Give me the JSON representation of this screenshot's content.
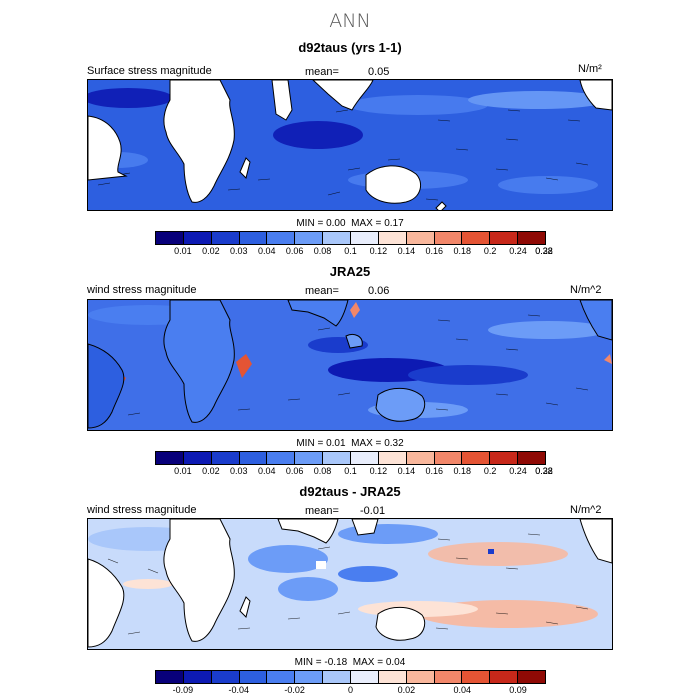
{
  "figure": {
    "title": "ANN"
  },
  "colorbar": {
    "colors": [
      "#08007a",
      "#0d1ab3",
      "#1a3ccc",
      "#2d5fe0",
      "#4a7ef0",
      "#6c9cf7",
      "#a9c7fa",
      "#e9eefc",
      "#fde3d6",
      "#f9b79c",
      "#f2876a",
      "#e45434",
      "#c7281a",
      "#8f0a05"
    ]
  },
  "panels": [
    {
      "id": "d92taus",
      "title": "d92taus (yrs 1-1)",
      "left_label": "Surface stress magnitude",
      "mean_label": "mean=",
      "mean_value": "0.05",
      "units": "N/m²",
      "min_label": "MIN =",
      "min_value": "0.00",
      "max_label": "MAX =",
      "max_value": "0.17",
      "ticks": [
        "0.01",
        "0.02",
        "0.03",
        "0.04",
        "0.06",
        "0.08",
        "0.1",
        "0.12",
        "0.14",
        "0.16",
        "0.18",
        "0.2",
        "0.24",
        "0.28",
        "0.32"
      ],
      "ocean_color": "#2d5fe0",
      "accent_color": "#4a7ef0"
    },
    {
      "id": "jra25",
      "title": "JRA25",
      "left_label": "wind stress magnitude",
      "mean_label": "mean=",
      "mean_value": "0.06",
      "units": "N/m^2",
      "min_label": "MIN =",
      "min_value": "0.01",
      "max_label": "MAX =",
      "max_value": "0.32",
      "ticks": [
        "0.01",
        "0.02",
        "0.03",
        "0.04",
        "0.06",
        "0.08",
        "0.1",
        "0.12",
        "0.14",
        "0.16",
        "0.18",
        "0.2",
        "0.24",
        "0.28",
        "0.32"
      ],
      "ocean_color": "#3f6fe8",
      "accent_color": "#6c9cf7"
    },
    {
      "id": "diff",
      "title": "d92taus - JRA25",
      "left_label": "wind stress magnitude",
      "mean_label": "mean=",
      "mean_value": "-0.01",
      "units": "N/m^2",
      "min_label": "MIN =",
      "min_value": "-0.18",
      "max_label": "MAX =",
      "max_value": "0.04",
      "ticks": [
        "-0.09",
        "-0.04",
        "-0.02",
        "0",
        "0.02",
        "0.04",
        "0.09"
      ],
      "ocean_color": "#a9c7fa",
      "accent_color": "#f9b79c"
    }
  ]
}
